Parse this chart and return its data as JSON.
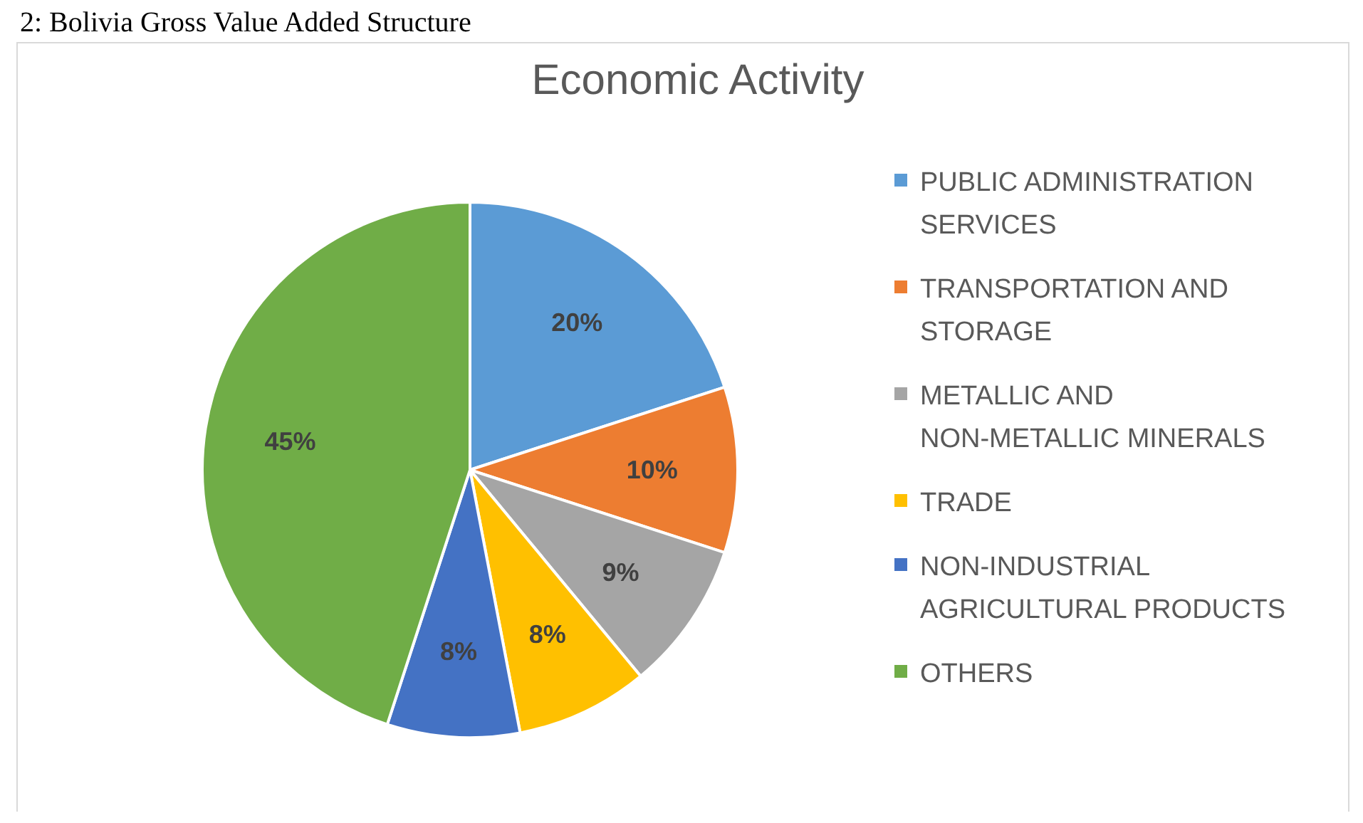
{
  "chart_data": {
    "type": "pie",
    "title": "Economic Activity",
    "annotations": [
      "2: Bolivia Gross Value Added Structure"
    ],
    "categories": [
      "PUBLIC ADMINISTRATION SERVICES",
      "TRANSPORTATION AND STORAGE",
      "METALLIC AND NON-METALLIC MINERALS",
      "TRADE",
      "NON-INDUSTRIAL AGRICULTURAL PRODUCTS",
      "OTHERS"
    ],
    "values": [
      20,
      10,
      9,
      8,
      8,
      45
    ],
    "colors": [
      "#5b9bd5",
      "#ed7d31",
      "#a5a5a5",
      "#ffc000",
      "#4472c4",
      "#70ad47"
    ],
    "value_labels": [
      "20%",
      "10%",
      "9%",
      "8%",
      "8%",
      "45%"
    ],
    "legend": "right"
  }
}
